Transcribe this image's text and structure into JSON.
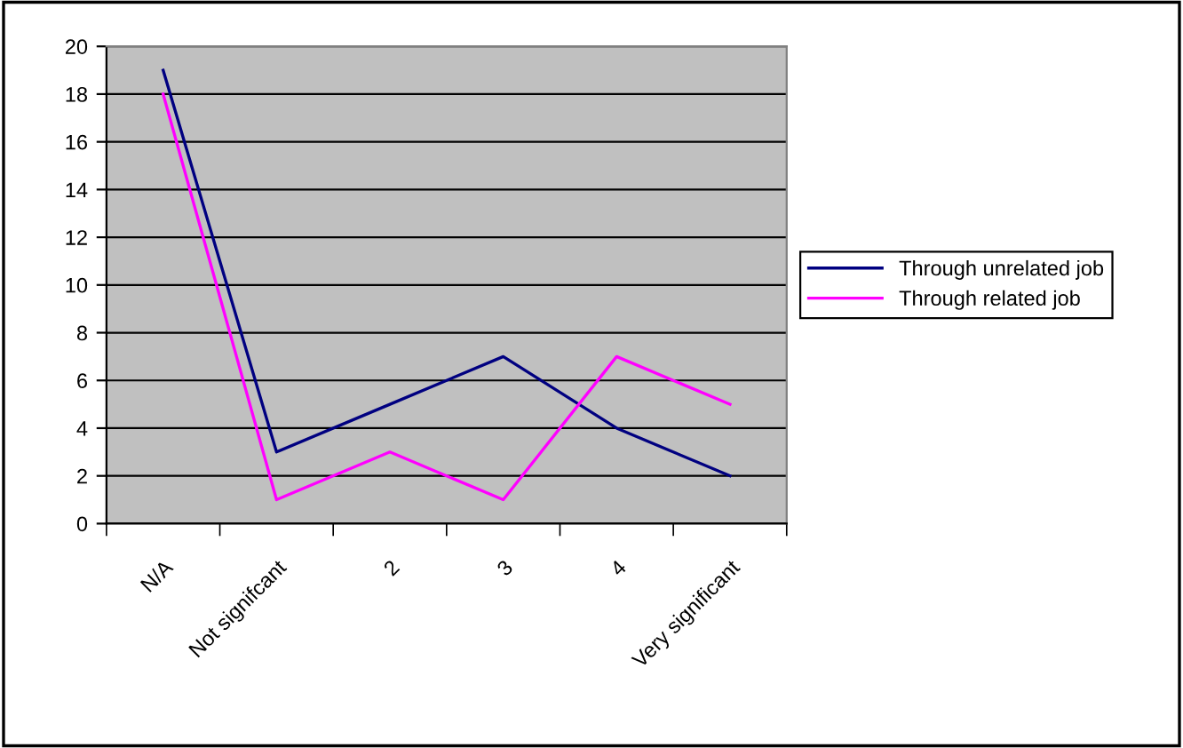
{
  "chart_data": {
    "type": "line",
    "categories": [
      "N/A",
      "Not signifcant",
      "2",
      "3",
      "4",
      "Very significant"
    ],
    "series": [
      {
        "name": "Through unrelated job",
        "color": "#000080",
        "values": [
          19,
          3,
          5,
          7,
          4,
          2
        ]
      },
      {
        "name": "Through related job",
        "color": "#ff00ff",
        "values": [
          18,
          1,
          3,
          1,
          7,
          5
        ]
      }
    ],
    "ylim": [
      0,
      20
    ],
    "yticks": [
      0,
      2,
      4,
      6,
      8,
      10,
      12,
      14,
      16,
      18,
      20
    ],
    "grid": "y",
    "legend": "right",
    "marker": "none",
    "line_style": "solid"
  }
}
